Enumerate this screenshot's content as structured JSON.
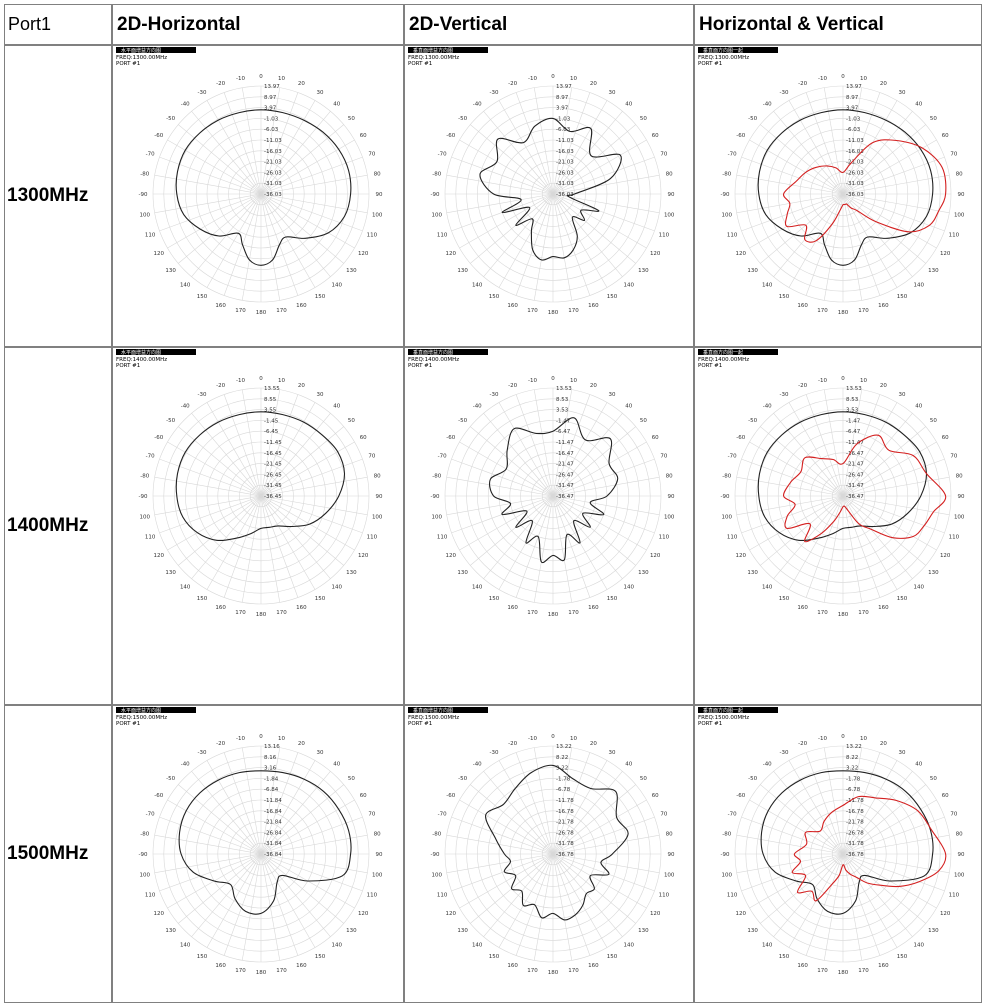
{
  "table": {
    "corner_label": "Port1",
    "column_headers": [
      "2D-Horizontal",
      "2D-Vertical",
      "Horizontal & Vertical"
    ],
    "row_labels": [
      "1300MHz",
      "1400MHz",
      "1500MHz"
    ]
  },
  "plot_common": {
    "port_label": "PORT #1",
    "header_text": {
      "horizontal": "水平面增益方向图",
      "vertical": "垂直面增益方向图",
      "combined": "垂直面方向图一起"
    },
    "angle_labels": [
      "0",
      "10",
      "20",
      "30",
      "40",
      "50",
      "60",
      "70",
      "80",
      "90",
      "100",
      "110",
      "120",
      "130",
      "140",
      "150",
      "160",
      "170",
      "180",
      "170",
      "160",
      "150",
      "140",
      "130",
      "120",
      "110",
      "100",
      "-90",
      "-80",
      "-70",
      "-60",
      "-50",
      "-40",
      "-30",
      "-20",
      "-10"
    ]
  },
  "colors": {
    "horizontal_trace": "#222222",
    "vertical_trace": "#222222",
    "combined_vertical_trace": "#d42020",
    "grid": "#d8d8d8",
    "border": "#808080"
  },
  "chart_data": [
    {
      "type": "polar",
      "row": 0,
      "col": 0,
      "freq_label": "FREQ:1300.00MHz",
      "ring_labels": [
        "13.97",
        "8.97",
        "3.97",
        "-1.03",
        "-6.03",
        "-11.03",
        "-16.03",
        "-21.03",
        "-26.03",
        "-31.03",
        "-36.03"
      ],
      "series": [
        {
          "name": "horizontal",
          "color": "#222222",
          "angles": [
            0,
            15,
            30,
            45,
            60,
            75,
            90,
            105,
            120,
            135,
            150,
            160,
            170,
            180,
            190,
            200,
            210,
            225,
            240,
            255,
            270,
            285,
            300,
            315,
            330,
            345,
            360
          ],
          "values": [
            0.78,
            0.78,
            0.79,
            0.81,
            0.83,
            0.84,
            0.83,
            0.8,
            0.72,
            0.58,
            0.46,
            0.5,
            0.62,
            0.66,
            0.62,
            0.5,
            0.42,
            0.55,
            0.65,
            0.74,
            0.78,
            0.8,
            0.81,
            0.8,
            0.79,
            0.78,
            0.78
          ]
        }
      ]
    },
    {
      "type": "polar",
      "row": 0,
      "col": 1,
      "freq_label": "FREQ:1300.00MHz",
      "ring_labels": [
        "13.97",
        "8.97",
        "3.97",
        "-1.03",
        "-6.03",
        "-11.03",
        "-16.03",
        "-21.03",
        "-26.03",
        "-31.03",
        "-36.03"
      ],
      "series": [
        {
          "name": "vertical",
          "color": "#222222",
          "angles": [
            0,
            15,
            30,
            45,
            60,
            75,
            90,
            100,
            110,
            120,
            130,
            140,
            150,
            160,
            170,
            180,
            190,
            200,
            210,
            220,
            230,
            240,
            250,
            260,
            270,
            285,
            300,
            315,
            330,
            345,
            360
          ],
          "values": [
            0.7,
            0.6,
            0.7,
            0.5,
            0.72,
            0.55,
            0.2,
            0.15,
            0.45,
            0.3,
            0.38,
            0.28,
            0.45,
            0.55,
            0.6,
            0.58,
            0.62,
            0.55,
            0.4,
            0.3,
            0.45,
            0.25,
            0.5,
            0.3,
            0.55,
            0.7,
            0.6,
            0.72,
            0.55,
            0.65,
            0.7
          ]
        }
      ]
    },
    {
      "type": "polar",
      "row": 0,
      "col": 2,
      "freq_label": "FREQ:1300.00MHz",
      "ring_labels": [
        "13.97",
        "8.97",
        "3.97",
        "-1.03",
        "-6.03",
        "-11.03",
        "-16.03",
        "-21.03",
        "-26.03",
        "-31.03",
        "-36.03"
      ],
      "series": [
        {
          "name": "horizontal",
          "color": "#222222",
          "angles": [
            0,
            15,
            30,
            45,
            60,
            75,
            90,
            105,
            120,
            135,
            150,
            160,
            170,
            180,
            190,
            200,
            210,
            225,
            240,
            255,
            270,
            285,
            300,
            315,
            330,
            345,
            360
          ],
          "values": [
            0.78,
            0.78,
            0.79,
            0.81,
            0.83,
            0.84,
            0.83,
            0.8,
            0.72,
            0.58,
            0.46,
            0.5,
            0.62,
            0.66,
            0.62,
            0.5,
            0.42,
            0.55,
            0.65,
            0.74,
            0.78,
            0.8,
            0.81,
            0.8,
            0.79,
            0.78,
            0.78
          ]
        },
        {
          "name": "vertical",
          "color": "#d42020",
          "angles": [
            0,
            15,
            30,
            45,
            60,
            75,
            90,
            100,
            110,
            120,
            130,
            140,
            150,
            160,
            170,
            180,
            190,
            200,
            210,
            220,
            230,
            240,
            250,
            260,
            270,
            285,
            300,
            315,
            330,
            345,
            360
          ],
          "values": [
            0.2,
            0.3,
            0.55,
            0.7,
            0.85,
            0.95,
            0.95,
            0.9,
            0.85,
            0.7,
            0.4,
            0.2,
            0.15,
            0.1,
            0.1,
            0.1,
            0.15,
            0.3,
            0.5,
            0.55,
            0.45,
            0.6,
            0.55,
            0.5,
            0.55,
            0.45,
            0.4,
            0.35,
            0.3,
            0.25,
            0.2
          ]
        }
      ]
    },
    {
      "type": "polar",
      "row": 1,
      "col": 0,
      "freq_label": "FREQ:1400.00MHz",
      "ring_labels": [
        "13.55",
        "8.55",
        "3.55",
        "-1.45",
        "-6.45",
        "-11.45",
        "-16.45",
        "-21.45",
        "-26.45",
        "-31.45",
        "-36.45"
      ],
      "series": [
        {
          "name": "horizontal",
          "color": "#222222",
          "angles": [
            0,
            15,
            30,
            45,
            60,
            75,
            90,
            105,
            120,
            135,
            150,
            165,
            180,
            195,
            210,
            225,
            240,
            255,
            270,
            285,
            300,
            315,
            330,
            345,
            360
          ],
          "values": [
            0.78,
            0.78,
            0.79,
            0.8,
            0.82,
            0.8,
            0.72,
            0.62,
            0.52,
            0.4,
            0.32,
            0.3,
            0.3,
            0.36,
            0.45,
            0.58,
            0.68,
            0.75,
            0.78,
            0.8,
            0.81,
            0.8,
            0.79,
            0.78,
            0.78
          ]
        }
      ]
    },
    {
      "type": "polar",
      "row": 1,
      "col": 1,
      "freq_label": "FREQ:1400.00MHz",
      "ring_labels": [
        "13.53",
        "8.53",
        "3.53",
        "-1.47",
        "-6.47",
        "-11.47",
        "-16.47",
        "-21.47",
        "-26.47",
        "-31.47",
        "-36.47"
      ],
      "series": [
        {
          "name": "vertical",
          "color": "#222222",
          "angles": [
            0,
            15,
            30,
            45,
            60,
            75,
            90,
            100,
            110,
            120,
            130,
            140,
            150,
            160,
            170,
            180,
            190,
            200,
            210,
            220,
            230,
            240,
            250,
            260,
            270,
            285,
            300,
            315,
            330,
            345,
            360
          ],
          "values": [
            0.6,
            0.75,
            0.6,
            0.75,
            0.6,
            0.62,
            0.5,
            0.35,
            0.5,
            0.32,
            0.45,
            0.3,
            0.5,
            0.38,
            0.6,
            0.55,
            0.62,
            0.4,
            0.5,
            0.3,
            0.45,
            0.28,
            0.5,
            0.4,
            0.55,
            0.6,
            0.5,
            0.6,
            0.72,
            0.6,
            0.6
          ]
        }
      ]
    },
    {
      "type": "polar",
      "row": 1,
      "col": 2,
      "freq_label": "FREQ:1400.00MHz",
      "ring_labels": [
        "13.53",
        "8.53",
        "3.53",
        "-1.47",
        "-6.47",
        "-11.47",
        "-16.47",
        "-21.47",
        "-26.47",
        "-31.47",
        "-36.47"
      ],
      "series": [
        {
          "name": "horizontal",
          "color": "#222222",
          "angles": [
            0,
            15,
            30,
            45,
            60,
            75,
            90,
            105,
            120,
            135,
            150,
            165,
            180,
            195,
            210,
            225,
            240,
            255,
            270,
            285,
            300,
            315,
            330,
            345,
            360
          ],
          "values": [
            0.78,
            0.78,
            0.79,
            0.8,
            0.82,
            0.8,
            0.72,
            0.62,
            0.52,
            0.4,
            0.32,
            0.3,
            0.3,
            0.36,
            0.45,
            0.58,
            0.68,
            0.75,
            0.78,
            0.8,
            0.81,
            0.8,
            0.79,
            0.78,
            0.78
          ]
        },
        {
          "name": "vertical",
          "color": "#d42020",
          "angles": [
            0,
            15,
            30,
            45,
            60,
            75,
            90,
            100,
            110,
            120,
            130,
            140,
            150,
            160,
            170,
            180,
            190,
            200,
            210,
            220,
            230,
            240,
            250,
            260,
            270,
            285,
            300,
            315,
            330,
            345,
            360
          ],
          "values": [
            0.3,
            0.5,
            0.65,
            0.6,
            0.75,
            0.8,
            0.95,
            0.85,
            0.8,
            0.75,
            0.6,
            0.4,
            0.3,
            0.15,
            0.1,
            0.1,
            0.15,
            0.25,
            0.4,
            0.55,
            0.4,
            0.6,
            0.55,
            0.45,
            0.55,
            0.5,
            0.45,
            0.5,
            0.4,
            0.35,
            0.3
          ]
        }
      ]
    },
    {
      "type": "polar",
      "row": 2,
      "col": 0,
      "freq_label": "FREQ:1500.00MHz",
      "ring_labels": [
        "13.16",
        "8.16",
        "3.16",
        "-1.84",
        "-6.84",
        "-11.84",
        "-16.84",
        "-21.84",
        "-26.84",
        "-31.84",
        "-36.84"
      ],
      "series": [
        {
          "name": "horizontal",
          "color": "#222222",
          "angles": [
            0,
            15,
            30,
            45,
            60,
            75,
            90,
            105,
            120,
            135,
            150,
            165,
            180,
            195,
            210,
            225,
            240,
            255,
            270,
            285,
            300,
            315,
            330,
            345,
            360
          ],
          "values": [
            0.77,
            0.78,
            0.8,
            0.82,
            0.83,
            0.84,
            0.83,
            0.78,
            0.5,
            0.28,
            0.3,
            0.45,
            0.55,
            0.55,
            0.48,
            0.4,
            0.5,
            0.65,
            0.74,
            0.78,
            0.8,
            0.8,
            0.79,
            0.78,
            0.77
          ]
        }
      ]
    },
    {
      "type": "polar",
      "row": 2,
      "col": 1,
      "freq_label": "FREQ:1500.00MHz",
      "ring_labels": [
        "13.22",
        "8.22",
        "3.22",
        "-1.78",
        "-6.78",
        "-11.78",
        "-16.78",
        "-21.78",
        "-26.78",
        "-31.78",
        "-36.78"
      ],
      "series": [
        {
          "name": "vertical",
          "color": "#222222",
          "angles": [
            0,
            15,
            30,
            45,
            60,
            75,
            90,
            100,
            110,
            120,
            130,
            140,
            150,
            160,
            170,
            180,
            190,
            200,
            210,
            220,
            230,
            240,
            250,
            260,
            270,
            285,
            300,
            315,
            330,
            345,
            360
          ],
          "values": [
            0.82,
            0.72,
            0.7,
            0.82,
            0.68,
            0.72,
            0.55,
            0.45,
            0.55,
            0.4,
            0.5,
            0.48,
            0.55,
            0.6,
            0.62,
            0.55,
            0.6,
            0.5,
            0.55,
            0.45,
            0.5,
            0.4,
            0.48,
            0.4,
            0.45,
            0.55,
            0.72,
            0.65,
            0.7,
            0.78,
            0.82
          ]
        }
      ]
    },
    {
      "type": "polar",
      "row": 2,
      "col": 2,
      "freq_label": "FREQ:1500.00MHz",
      "ring_labels": [
        "13.22",
        "8.22",
        "3.22",
        "-1.78",
        "-6.78",
        "-11.78",
        "-16.78",
        "-21.78",
        "-26.78",
        "-31.78",
        "-36.78"
      ],
      "series": [
        {
          "name": "horizontal",
          "color": "#222222",
          "angles": [
            0,
            15,
            30,
            45,
            60,
            75,
            90,
            105,
            120,
            135,
            150,
            165,
            180,
            195,
            210,
            225,
            240,
            255,
            270,
            285,
            300,
            315,
            330,
            345,
            360
          ],
          "values": [
            0.77,
            0.78,
            0.8,
            0.82,
            0.83,
            0.84,
            0.83,
            0.78,
            0.5,
            0.28,
            0.3,
            0.45,
            0.55,
            0.55,
            0.48,
            0.4,
            0.5,
            0.65,
            0.74,
            0.78,
            0.8,
            0.8,
            0.79,
            0.78,
            0.77
          ]
        },
        {
          "name": "vertical",
          "color": "#d42020",
          "angles": [
            0,
            15,
            30,
            45,
            60,
            75,
            90,
            100,
            110,
            120,
            130,
            140,
            150,
            160,
            170,
            180,
            190,
            200,
            210,
            220,
            230,
            240,
            250,
            260,
            270,
            285,
            300,
            315,
            330,
            345,
            360
          ],
          "values": [
            0.45,
            0.55,
            0.6,
            0.7,
            0.8,
            0.85,
            0.95,
            0.9,
            0.75,
            0.6,
            0.45,
            0.35,
            0.25,
            0.2,
            0.15,
            0.1,
            0.2,
            0.3,
            0.5,
            0.45,
            0.55,
            0.4,
            0.5,
            0.4,
            0.45,
            0.35,
            0.4,
            0.3,
            0.35,
            0.4,
            0.45
          ]
        }
      ]
    }
  ]
}
